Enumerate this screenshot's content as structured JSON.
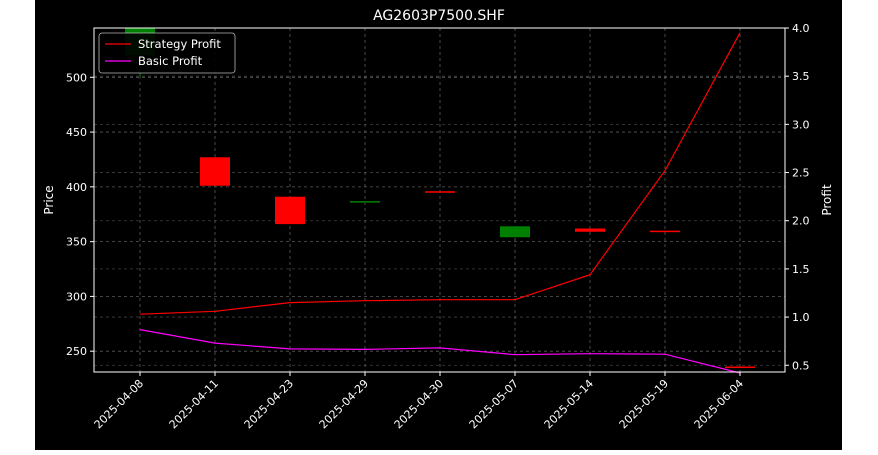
{
  "chart_data": {
    "type": "candlestick+line",
    "title": "AG2603P7500.SHF",
    "xlabel": "",
    "ylabel_left": "Price",
    "ylabel_right": "Profit",
    "categories": [
      "2025-04-08",
      "2025-04-11",
      "2025-04-23",
      "2025-04-29",
      "2025-04-30",
      "2025-05-07",
      "2025-05-14",
      "2025-05-19",
      "2025-06-04"
    ],
    "ylim_left": [
      231,
      545
    ],
    "yticks_left": [
      250,
      300,
      350,
      400,
      450,
      500
    ],
    "ylim_right": [
      0.43,
      4.0
    ],
    "yticks_right": [
      "0.5",
      "1.0",
      "1.5",
      "2.0",
      "2.5",
      "3.0",
      "3.5",
      "4.0"
    ],
    "yticks_right_values": [
      0.5,
      1.0,
      1.5,
      2.0,
      2.5,
      3.0,
      3.5,
      4.0
    ],
    "grid": true,
    "legend_position": "upper-left",
    "candles": [
      {
        "open": 520,
        "close": 545,
        "high": 545,
        "low": 500,
        "color": "#008000"
      },
      {
        "open": 427,
        "close": 401,
        "high": 427,
        "low": 401,
        "color": "#ff0000"
      },
      {
        "open": 391,
        "close": 366,
        "high": 391,
        "low": 366,
        "color": "#ff0000"
      },
      {
        "open": 386,
        "close": 387,
        "high": 387,
        "low": 386,
        "color": "#008000"
      },
      {
        "open": 396,
        "close": 395,
        "high": 396,
        "low": 395,
        "color": "#ff0000"
      },
      {
        "open": 354,
        "close": 364,
        "high": 364,
        "low": 354,
        "color": "#008000"
      },
      {
        "open": 362,
        "close": 359,
        "high": 362,
        "low": 359,
        "color": "#ff0000"
      },
      {
        "open": 360,
        "close": 359,
        "high": 360,
        "low": 359,
        "color": "#ff0000"
      },
      {
        "open": 236,
        "close": 235,
        "high": 236,
        "low": 235,
        "color": "#ff0000"
      }
    ],
    "series": [
      {
        "name": "Strategy Profit",
        "color": "#ff0000",
        "values": [
          1.03,
          1.06,
          1.15,
          1.17,
          1.18,
          1.18,
          1.44,
          2.52,
          3.95
        ]
      },
      {
        "name": "Basic Profit",
        "color": "#ff00ff",
        "values": [
          0.87,
          0.73,
          0.67,
          0.665,
          0.68,
          0.61,
          0.62,
          0.615,
          0.42
        ]
      }
    ]
  }
}
